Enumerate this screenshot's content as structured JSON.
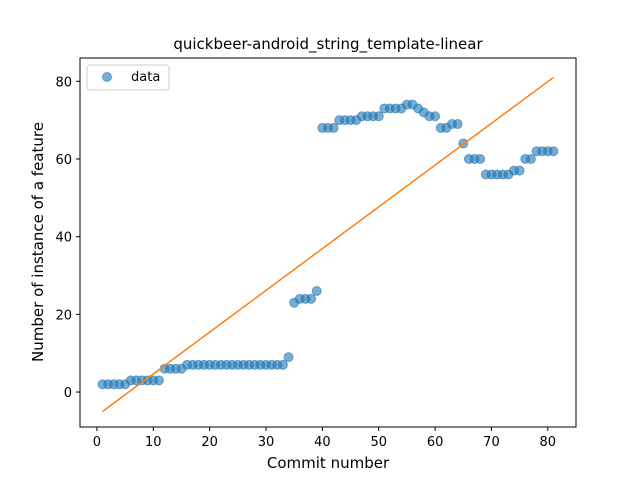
{
  "chart_data": {
    "type": "scatter",
    "title": "quickbeer-android_string_template-linear",
    "xlabel": "Commit number",
    "ylabel": "Number of instance of a feature",
    "xlim": [
      -3,
      85
    ],
    "ylim": [
      -9,
      86
    ],
    "xticks": [
      0,
      10,
      20,
      30,
      40,
      50,
      60,
      70,
      80
    ],
    "yticks": [
      0,
      20,
      40,
      60,
      80
    ],
    "legend": {
      "position": "top-left",
      "entries": [
        "data"
      ]
    },
    "grid": false,
    "colors": {
      "data": "#1f77b4",
      "fit": "#ff7f0e"
    },
    "series": [
      {
        "name": "data",
        "kind": "scatter",
        "x": [
          1,
          2,
          3,
          4,
          5,
          6,
          7,
          8,
          9,
          10,
          11,
          12,
          13,
          14,
          15,
          16,
          17,
          18,
          19,
          20,
          21,
          22,
          23,
          24,
          25,
          26,
          27,
          28,
          29,
          30,
          31,
          32,
          33,
          34,
          35,
          36,
          37,
          38,
          39,
          40,
          41,
          42,
          43,
          44,
          45,
          46,
          47,
          48,
          49,
          50,
          51,
          52,
          53,
          54,
          55,
          56,
          57,
          58,
          59,
          60,
          61,
          62,
          63,
          64,
          65,
          66,
          67,
          68,
          69,
          70,
          71,
          72,
          73,
          74,
          75,
          76,
          77,
          78,
          79,
          80,
          81
        ],
        "y": [
          2,
          2,
          2,
          2,
          2,
          3,
          3,
          3,
          3,
          3,
          3,
          6,
          6,
          6,
          6,
          7,
          7,
          7,
          7,
          7,
          7,
          7,
          7,
          7,
          7,
          7,
          7,
          7,
          7,
          7,
          7,
          7,
          7,
          9,
          23,
          24,
          24,
          24,
          26,
          68,
          68,
          68,
          70,
          70,
          70,
          70,
          71,
          71,
          71,
          71,
          73,
          73,
          73,
          73,
          74,
          74,
          73,
          72,
          71,
          71,
          68,
          68,
          69,
          69,
          64,
          60,
          60,
          60,
          56,
          56,
          56,
          56,
          56,
          57,
          57,
          60,
          60,
          62,
          62,
          62,
          62
        ]
      },
      {
        "kind": "line",
        "x": [
          1,
          81
        ],
        "y": [
          -5,
          81
        ]
      }
    ]
  }
}
